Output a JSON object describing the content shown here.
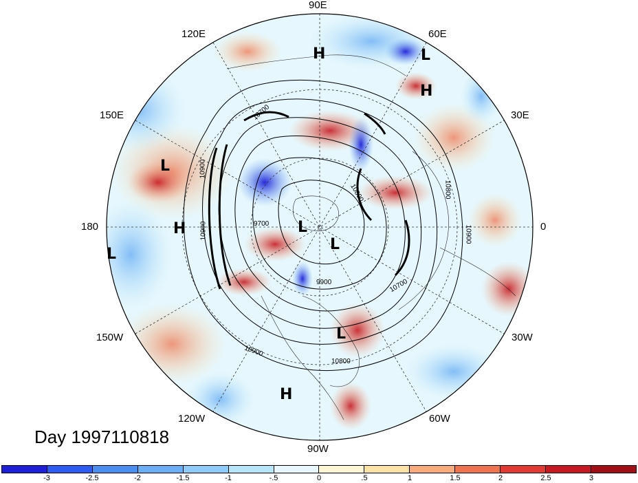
{
  "title": "Day 1997110818",
  "longitude_labels": [
    {
      "text": "90E"
    },
    {
      "text": "120E"
    },
    {
      "text": "60E"
    },
    {
      "text": "150E"
    },
    {
      "text": "30E"
    },
    {
      "text": "180"
    },
    {
      "text": "0"
    },
    {
      "text": "150W"
    },
    {
      "text": "30W"
    },
    {
      "text": "120W"
    },
    {
      "text": "60W"
    },
    {
      "text": "90W"
    }
  ],
  "pressure_centers": [
    {
      "type": "H"
    },
    {
      "type": "L"
    },
    {
      "type": "H"
    },
    {
      "type": "L"
    },
    {
      "type": "H"
    },
    {
      "type": "L"
    },
    {
      "type": "L"
    },
    {
      "type": "L"
    },
    {
      "type": "L"
    },
    {
      "type": "H"
    }
  ],
  "contour_labels": [
    "10700",
    "10900",
    "10900",
    "10800",
    "10900",
    "9700",
    "9900",
    "10700",
    "10800",
    "10900",
    "10800"
  ],
  "colorbar": {
    "ticks": [
      "-3",
      "-2.5",
      "-2",
      "-1.5",
      "-1",
      "-.5",
      "0",
      ".5",
      "1",
      "1.5",
      "2",
      "2.5",
      "3"
    ],
    "colors": [
      "#1f1fd8",
      "#2e5cf0",
      "#4a8ef2",
      "#6aaef5",
      "#8fcbf8",
      "#b7e6fa",
      "#e6f7fd",
      "#fff6d6",
      "#fde2a6",
      "#f8ac7e",
      "#ef7550",
      "#e03b35",
      "#c51a22",
      "#a01016"
    ]
  }
}
